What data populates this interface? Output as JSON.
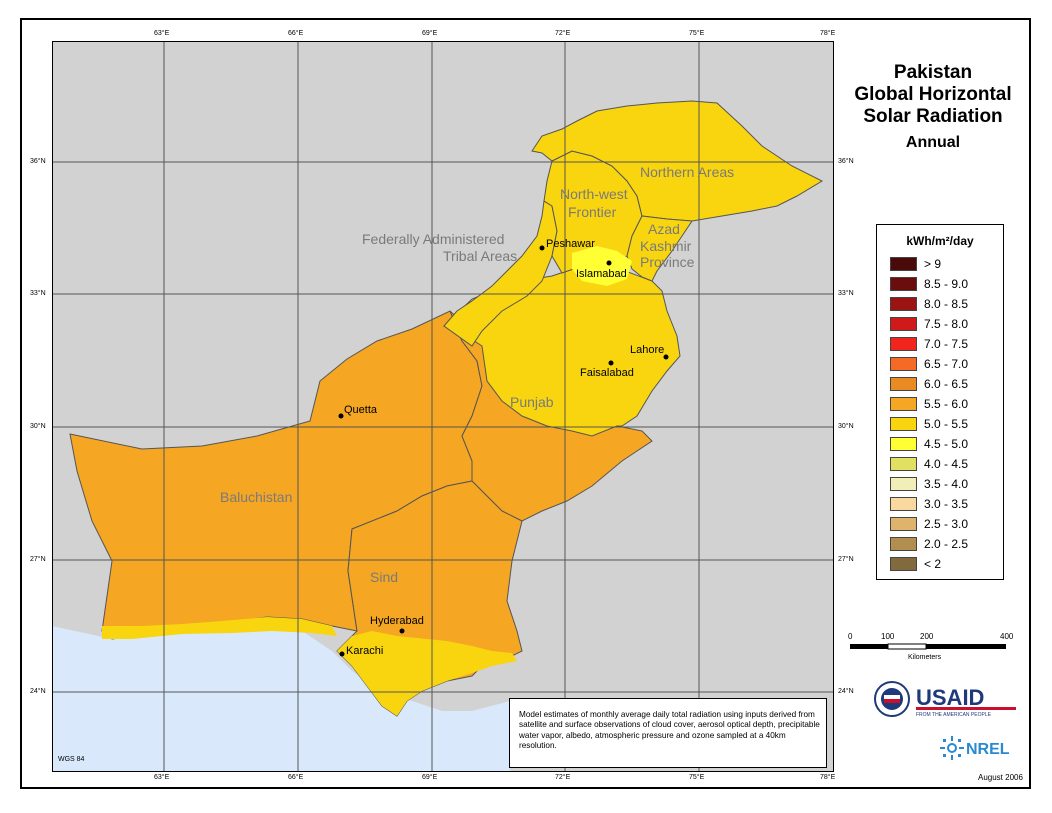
{
  "title": {
    "lines": [
      "Pakistan",
      "Global Horizontal",
      "Solar Radiation"
    ],
    "subtitle": "Annual"
  },
  "axes": {
    "lon_labels": [
      "63°E",
      "66°E",
      "69°E",
      "72°E",
      "75°E",
      "78°E"
    ],
    "lat_labels": [
      "36°N",
      "33°N",
      "30°N",
      "27°N",
      "24°N"
    ]
  },
  "regions": [
    {
      "id": "northern-areas",
      "label": "Northern Areas"
    },
    {
      "id": "nwfp",
      "label": "North-west Frontier"
    },
    {
      "id": "fata",
      "label": "Federally Administered Tribal Areas"
    },
    {
      "id": "ajk",
      "label": "Azad Kashmir Province"
    },
    {
      "id": "punjab",
      "label": "Punjab"
    },
    {
      "id": "baluchistan",
      "label": "Baluchistan"
    },
    {
      "id": "sind",
      "label": "Sind"
    }
  ],
  "cities": {
    "peshawar": "Peshawar",
    "islamabad": "Islamabad",
    "lahore": "Lahore",
    "faisalabad": "Faisalabad",
    "quetta": "Quetta",
    "hyderabad": "Hyderabad",
    "karachi": "Karachi"
  },
  "region_text": {
    "northern_areas": "Northern Areas",
    "nwfp_1": "North-west",
    "nwfp_2": "Frontier",
    "fata_1": "Federally Administered",
    "fata_2": "Tribal Areas",
    "ajk_1": "Azad",
    "ajk_2": "Kashmir",
    "ajk_3": "Province",
    "punjab": "Punjab",
    "baluchistan": "Baluchistan",
    "sind": "Sind"
  },
  "legend": {
    "title": "kWh/m²/day",
    "items": [
      {
        "label": "> 9",
        "color": "#4a0a0a"
      },
      {
        "label": "8.5 - 9.0",
        "color": "#6b0d0d"
      },
      {
        "label": "8.0 - 8.5",
        "color": "#9c1313"
      },
      {
        "label": "7.5 - 8.0",
        "color": "#d01a1a"
      },
      {
        "label": "7.0 - 7.5",
        "color": "#f2251c"
      },
      {
        "label": "6.5 - 7.0",
        "color": "#f56a27"
      },
      {
        "label": "6.0 - 6.5",
        "color": "#e98a22"
      },
      {
        "label": "5.5 - 6.0",
        "color": "#f5a623"
      },
      {
        "label": "5.0 - 5.5",
        "color": "#f8d50f"
      },
      {
        "label": "4.5 - 5.0",
        "color": "#ffff33"
      },
      {
        "label": "4.0 - 4.5",
        "color": "#e2e060"
      },
      {
        "label": "3.5 - 4.0",
        "color": "#f1eeb8"
      },
      {
        "label": "3.0 - 3.5",
        "color": "#fad9a1"
      },
      {
        "label": "2.5 - 3.0",
        "color": "#dfb36b"
      },
      {
        "label": "2.0 - 2.5",
        "color": "#b38f4f"
      },
      {
        "label": "< 2",
        "color": "#806a3e"
      }
    ]
  },
  "scale_bar": {
    "ticks": [
      "0",
      "100",
      "200",
      "400"
    ],
    "unit": "Kilometers"
  },
  "note": "Model estimates of monthly average daily total radiation using inputs derived from satellite and surface observations of cloud cover, aerosol optical depth, precipitable water vapor, albedo, atmospheric pressure and ozone sampled at a 40km resolution.",
  "datum": "WGS 84",
  "date": "August 2006",
  "logos": {
    "usaid": "USAID",
    "usaid_tagline": "FROM THE AMERICAN PEOPLE",
    "nrel": "NREL"
  },
  "colors": {
    "ocean": "#d9e9fb",
    "land_outside": "#d2d2d2",
    "grid": "#555555",
    "orange": "#f5a623",
    "yellow": "#f8d50f",
    "bright_yellow": "#ffff33",
    "region_label": "#7a7a7a"
  }
}
